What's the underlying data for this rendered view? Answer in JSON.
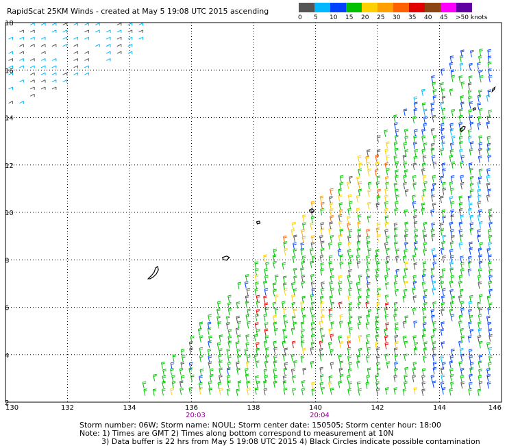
{
  "title": "RapidScat 25KM Winds - created at May  5 19:08 UTC 2015 ascending",
  "speed_scale": {
    "labels": [
      "0",
      "5",
      "10",
      "15",
      "20",
      "25",
      "30",
      "35",
      "40",
      "45",
      ">50 knots"
    ],
    "colors": [
      "#555555",
      "#00b8ff",
      "#0040ff",
      "#00c000",
      "#ffd000",
      "#ffa000",
      "#ff6000",
      "#e00000",
      "#8b4513",
      "#ff00ff",
      "#6000a0"
    ]
  },
  "map": {
    "longitude_labels": [
      "130",
      "132",
      "134",
      "136",
      "138",
      "140",
      "142",
      "144",
      "146"
    ],
    "latitude_labels": [
      "2",
      "4",
      "6",
      "8",
      "10",
      "12",
      "14",
      "16",
      "18"
    ],
    "lon_range": [
      130,
      146
    ],
    "lat_range": [
      2,
      18
    ],
    "pass_times": [
      {
        "lon": 136,
        "label": "20:03"
      },
      {
        "lon": 140,
        "label": "20:04"
      }
    ],
    "pass_time_color": "#8b008b",
    "grid": true,
    "coastline_color": "#000000"
  },
  "footer": {
    "line1": "Storm number: 06W;  Storm name: NOUL;  Storm center date: 150505;  Storm center hour: 18:00",
    "line2": "Note: 1) Times are GMT  2) Times along bottom correspond to measurement at 10N",
    "line3": "3) Data buffer is 22 hrs from May  5 19:08 UTC 2015  4) Black Circles indicate possible contamination"
  }
}
